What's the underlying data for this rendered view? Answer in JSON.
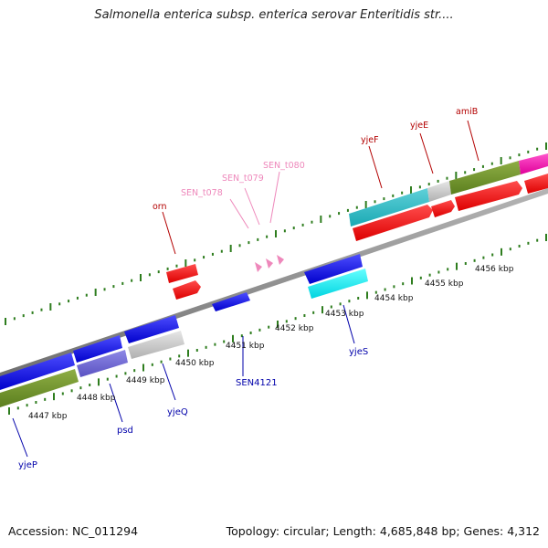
{
  "title": "Salmonella enterica subsp. enterica serovar Enteritidis str....",
  "footer": {
    "accession": "Accession: NC_011294",
    "summary": "Topology: circular; Length: 4,685,848 bp; Genes: 4,312"
  },
  "colors": {
    "backbone": "#8c8c8c",
    "ticks": "#2e7d1e",
    "top_labels": "#b30000",
    "trna_labels": "#ee88bb",
    "bottom_labels": "#0000aa",
    "scale_labels": "#111111"
  },
  "scale_labels": [
    "4447 kbp",
    "4448 kbp",
    "4449 kbp",
    "4450 kbp",
    "4451 kbp",
    "4452 kbp",
    "4453 kbp",
    "4454 kbp",
    "4455 kbp",
    "4456 kbp"
  ],
  "forward_labels": [
    "orn",
    "SEN_t078",
    "SEN_t079",
    "SEN_t080",
    "yjeF",
    "yjeE",
    "amiB"
  ],
  "reverse_labels": [
    "yjeP",
    "psd",
    "yjeQ",
    "SEN4121",
    "yjeS"
  ]
}
